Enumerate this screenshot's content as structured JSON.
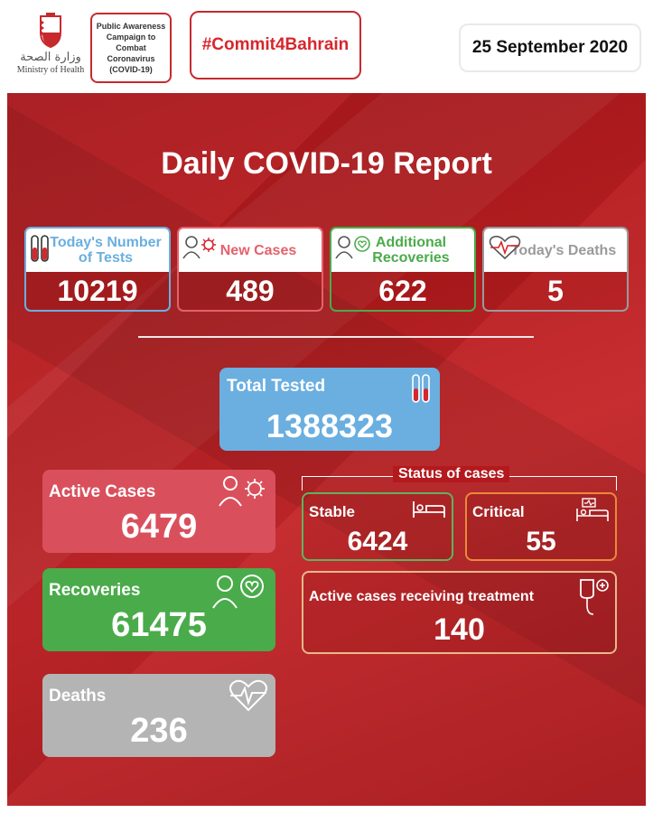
{
  "header": {
    "ministry_arabic": "وزارة الصحة",
    "ministry_english": "Ministry of Health",
    "campaign_text": "Public Awareness Campaign to Combat Coronavirus (COVID-19)",
    "hashtag": "#Commit4Bahrain",
    "date": "25 September 2020"
  },
  "title": "Daily COVID-19 Report",
  "daily_stats": [
    {
      "label": "Today's Number of Tests",
      "value": "10219",
      "color": "#6aafe0",
      "icon": "test-tubes-icon"
    },
    {
      "label": "New Cases",
      "value": "489",
      "color": "#e5616b",
      "icon": "person-virus-icon"
    },
    {
      "label": "Additional Recoveries",
      "value": "622",
      "color": "#4aab4a",
      "icon": "person-heart-icon"
    },
    {
      "label": "Today's Deaths",
      "value": "5",
      "color": "#9a9a9a",
      "icon": "heartbeat-icon"
    }
  ],
  "total_tested": {
    "label": "Total Tested",
    "value": "1388323"
  },
  "active_cases": {
    "label": "Active Cases",
    "value": "6479",
    "color": "#d9505c"
  },
  "recoveries": {
    "label": "Recoveries",
    "value": "61475",
    "color": "#4aab4a"
  },
  "deaths": {
    "label": "Deaths",
    "value": "236",
    "color": "#b4b4b4"
  },
  "status": {
    "title": "Status of cases",
    "stable": {
      "label": "Stable",
      "value": "6424",
      "color": "#5fb35f"
    },
    "critical": {
      "label": "Critical",
      "value": "55",
      "color": "#e98a3a"
    },
    "treatment": {
      "label": "Active cases receiving treatment",
      "value": "140",
      "color": "#e8b98a"
    }
  }
}
